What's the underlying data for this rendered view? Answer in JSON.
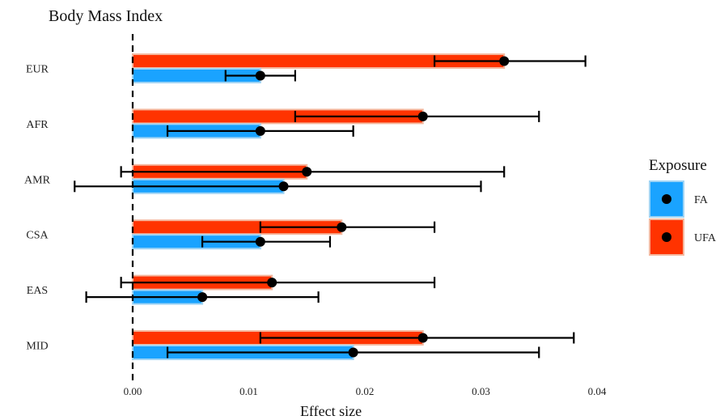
{
  "chart_data": {
    "type": "bar",
    "orientation": "horizontal",
    "title": "Body Mass Index",
    "xlabel": "Effect size",
    "ylabel": "",
    "xlim": [
      0,
      0.04
    ],
    "xticks": [
      "0.00",
      "0.01",
      "0.02",
      "0.03",
      "0.04"
    ],
    "categories": [
      "EUR",
      "AFR",
      "AMR",
      "CSA",
      "EAS",
      "MID"
    ],
    "series": [
      {
        "name": "UFA",
        "color": "#FF3300",
        "values": [
          0.032,
          0.025,
          0.015,
          0.018,
          0.012,
          0.025
        ],
        "ci_lower": [
          0.026,
          0.014,
          -0.001,
          0.011,
          -0.001,
          0.011
        ],
        "ci_upper": [
          0.039,
          0.035,
          0.032,
          0.026,
          0.026,
          0.038
        ]
      },
      {
        "name": "FA",
        "color": "#1AA3FF",
        "values": [
          0.011,
          0.011,
          0.013,
          0.011,
          0.006,
          0.019
        ],
        "ci_lower": [
          0.008,
          0.003,
          -0.005,
          0.006,
          -0.004,
          0.003
        ],
        "ci_upper": [
          0.014,
          0.019,
          0.03,
          0.017,
          0.016,
          0.035
        ]
      }
    ],
    "reference_line": 0,
    "legend": {
      "title": "Exposure",
      "position": "right",
      "items": [
        "FA",
        "UFA"
      ]
    },
    "grid": false
  }
}
